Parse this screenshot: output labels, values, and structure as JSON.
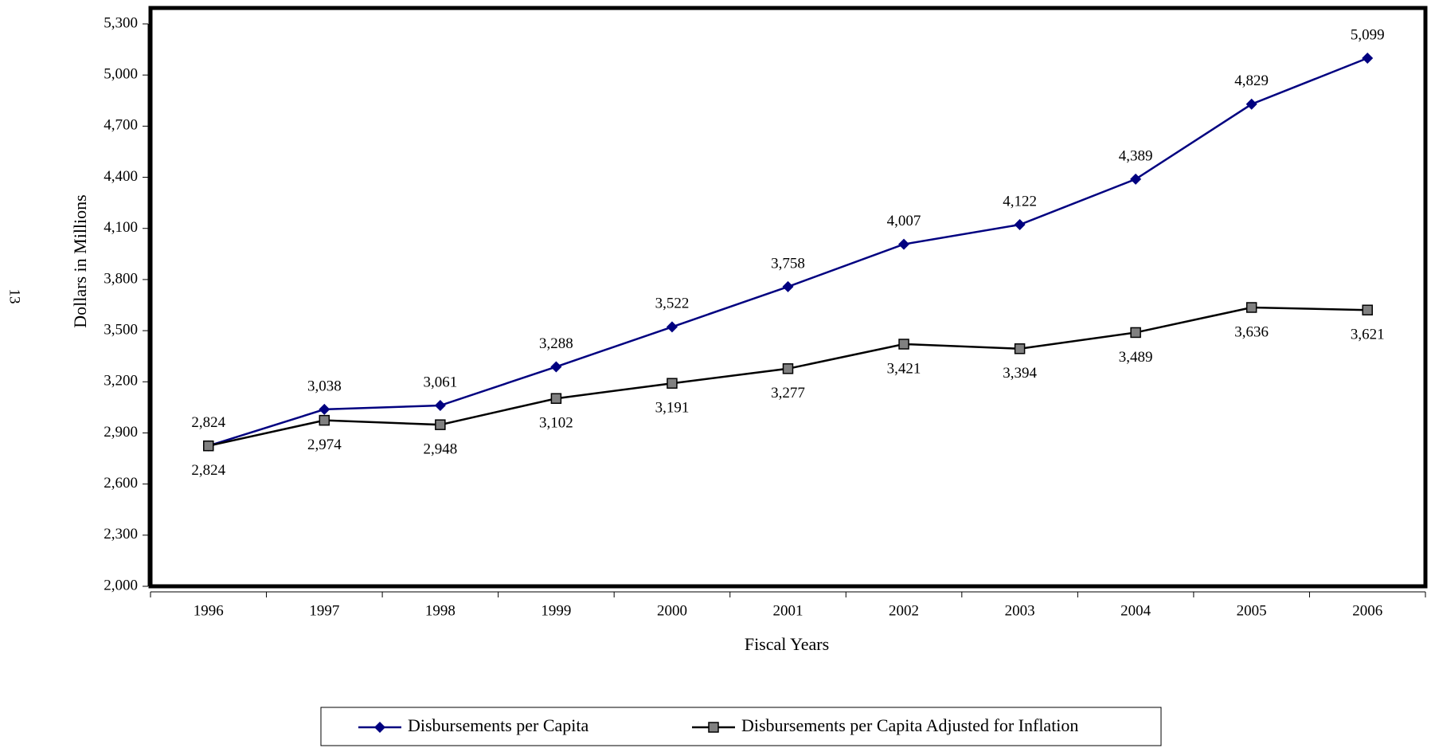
{
  "page_number": "13",
  "chart_data": {
    "type": "line",
    "x_label": "Fiscal Years",
    "y_label": "Dollars in Millions",
    "categories": [
      "1996",
      "1997",
      "1998",
      "1999",
      "2000",
      "2001",
      "2002",
      "2003",
      "2004",
      "2005",
      "2006"
    ],
    "series": [
      {
        "name": "Disbursements per Capita",
        "color": "#000080",
        "marker": "diamond",
        "values": [
          2824,
          3038,
          3061,
          3288,
          3522,
          3758,
          4007,
          4122,
          4389,
          4829,
          5099
        ],
        "value_labels": [
          "2,824",
          "3,038",
          "3,061",
          "3,288",
          "3,522",
          "3,758",
          "4,007",
          "4,122",
          "4,389",
          "4,829",
          "5,099"
        ]
      },
      {
        "name": "Disbursements per Capita Adjusted for Inflation",
        "color": "#000000",
        "marker_color": "#808080",
        "marker": "square",
        "values": [
          2824,
          2974,
          2948,
          3102,
          3191,
          3277,
          3421,
          3394,
          3489,
          3636,
          3621
        ],
        "value_labels": [
          "2,824",
          "2,974",
          "2,948",
          "3,102",
          "3,191",
          "3,277",
          "3,421",
          "3,394",
          "3,489",
          "3,636",
          "3,621"
        ]
      }
    ],
    "ylim": [
      2000,
      5300
    ],
    "yticks": [
      {
        "value": 2000,
        "label": "2,000"
      },
      {
        "value": 2300,
        "label": "2,300"
      },
      {
        "value": 2600,
        "label": "2,600"
      },
      {
        "value": 2900,
        "label": "2,900"
      },
      {
        "value": 3200,
        "label": "3,200"
      },
      {
        "value": 3500,
        "label": "3,500"
      },
      {
        "value": 3800,
        "label": "3,800"
      },
      {
        "value": 4100,
        "label": "4,100"
      },
      {
        "value": 4400,
        "label": "4,400"
      },
      {
        "value": 4700,
        "label": "4,700"
      },
      {
        "value": 5000,
        "label": "5,000"
      },
      {
        "value": 5300,
        "label": "5,300"
      }
    ],
    "grid": false,
    "legend": "bottom"
  }
}
